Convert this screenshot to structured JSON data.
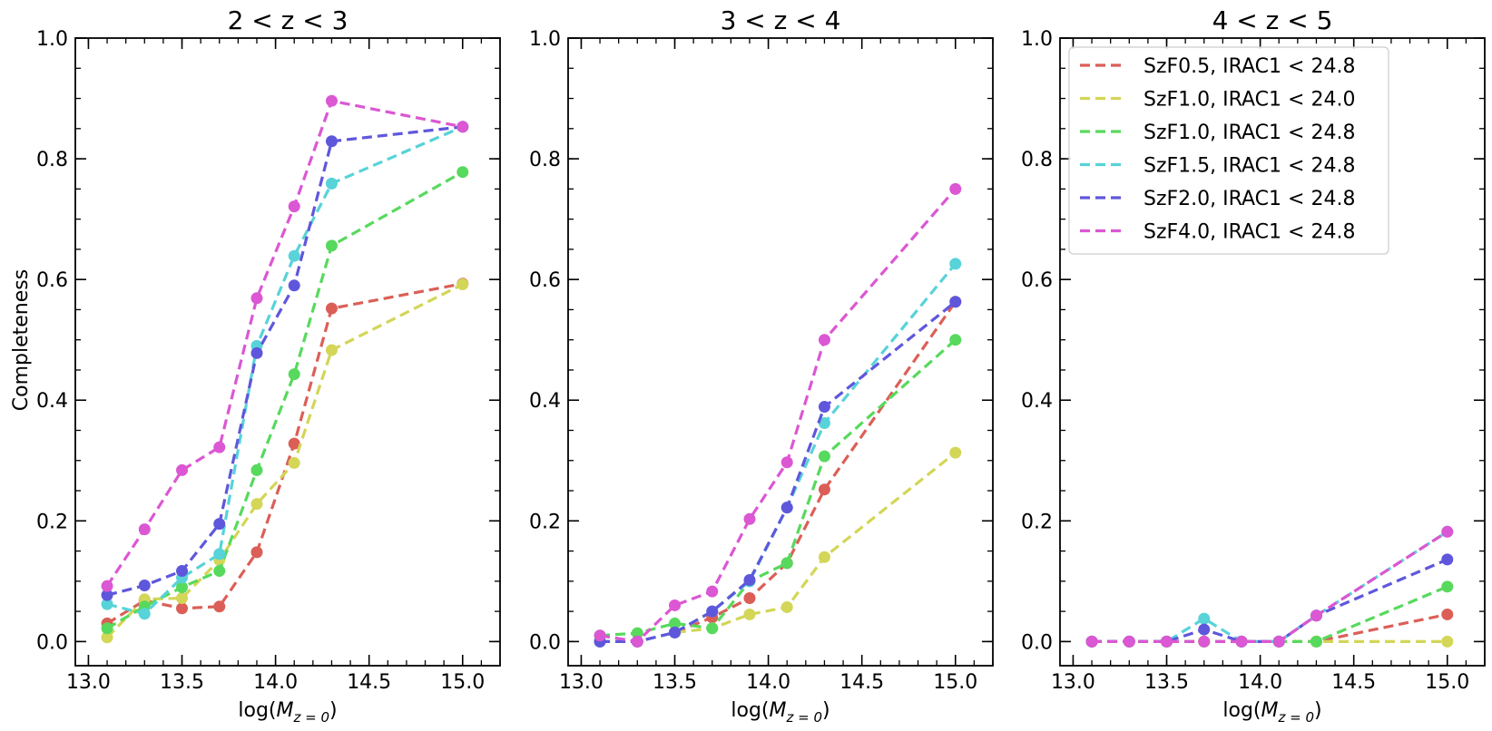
{
  "chart_data": {
    "type": "line",
    "ylabel": "Completeness",
    "xlabel_prefix": "log(",
    "xlabel_var": "M",
    "xlabel_sub": "z = 0",
    "xlabel_suffix": ")",
    "xlim": [
      12.93,
      15.2
    ],
    "ylim": [
      -0.04,
      1.0
    ],
    "x": [
      13.1,
      13.3,
      13.5,
      13.7,
      13.9,
      14.1,
      14.3,
      15.0
    ],
    "xticks": [
      13.0,
      13.5,
      14.0,
      14.5,
      15.0
    ],
    "xtick_labels": [
      "13.0",
      "13.5",
      "14.0",
      "14.5",
      "15.0"
    ],
    "yticks": [
      0.0,
      0.2,
      0.4,
      0.6,
      0.8,
      1.0
    ],
    "ytick_labels": [
      "0.0",
      "0.2",
      "0.4",
      "0.6",
      "0.8",
      "1.0"
    ],
    "legend_location": "upper-left of third panel",
    "series_info": [
      {
        "name": "SzF0.5, IRAC1 < 24.8",
        "color": "#db5f57"
      },
      {
        "name": "SzF1.0, IRAC1 < 24.0",
        "color": "#d3d657"
      },
      {
        "name": "SzF1.0, IRAC1 < 24.8",
        "color": "#57d95d"
      },
      {
        "name": "SzF1.5, IRAC1 < 24.8",
        "color": "#57d3d9"
      },
      {
        "name": "SzF2.0, IRAC1 < 24.8",
        "color": "#5f57db"
      },
      {
        "name": "SzF4.0, IRAC1 < 24.8",
        "color": "#db57d3"
      }
    ],
    "panels": [
      {
        "title": "2 < z < 3",
        "series_values": [
          [
            0.03,
            0.068,
            0.055,
            0.058,
            0.148,
            0.328,
            0.552,
            0.593
          ],
          [
            0.007,
            0.07,
            0.072,
            0.135,
            0.228,
            0.296,
            0.483,
            0.592
          ],
          [
            0.022,
            0.058,
            0.09,
            0.117,
            0.284,
            0.443,
            0.656,
            0.778
          ],
          [
            0.062,
            0.046,
            0.106,
            0.145,
            0.49,
            0.639,
            0.759,
            0.853
          ],
          [
            0.077,
            0.093,
            0.117,
            0.195,
            0.478,
            0.59,
            0.829,
            0.853
          ],
          [
            0.092,
            0.186,
            0.284,
            0.322,
            0.569,
            0.721,
            0.896,
            0.853
          ]
        ]
      },
      {
        "title": "3 < z < 4",
        "series_values": [
          [
            0.0,
            0.0,
            0.015,
            0.04,
            0.072,
            0.13,
            0.252,
            0.563
          ],
          [
            0.0,
            0.0,
            0.015,
            0.022,
            0.045,
            0.057,
            0.14,
            0.313
          ],
          [
            0.01,
            0.014,
            0.03,
            0.022,
            0.1,
            0.13,
            0.307,
            0.5
          ],
          [
            0.0,
            0.0,
            0.015,
            0.05,
            0.1,
            0.222,
            0.362,
            0.626
          ],
          [
            0.0,
            0.0,
            0.015,
            0.05,
            0.102,
            0.222,
            0.389,
            0.563
          ],
          [
            0.01,
            0.0,
            0.06,
            0.083,
            0.203,
            0.297,
            0.5,
            0.75
          ]
        ]
      },
      {
        "title": "4 < z < 5",
        "series_values": [
          [
            0.0,
            0.0,
            0.0,
            0.0,
            0.0,
            0.0,
            0.0,
            0.045
          ],
          [
            0.0,
            0.0,
            0.0,
            0.0,
            0.0,
            0.0,
            0.0,
            0.0
          ],
          [
            0.0,
            0.0,
            0.0,
            0.0,
            0.0,
            0.0,
            0.0,
            0.091
          ],
          [
            0.0,
            0.0,
            0.0,
            0.038,
            0.0,
            0.0,
            0.043,
            0.182
          ],
          [
            0.0,
            0.0,
            0.0,
            0.02,
            0.0,
            0.0,
            0.043,
            0.136
          ],
          [
            0.0,
            0.0,
            0.0,
            0.0,
            0.0,
            0.0,
            0.043,
            0.182
          ]
        ]
      }
    ]
  }
}
